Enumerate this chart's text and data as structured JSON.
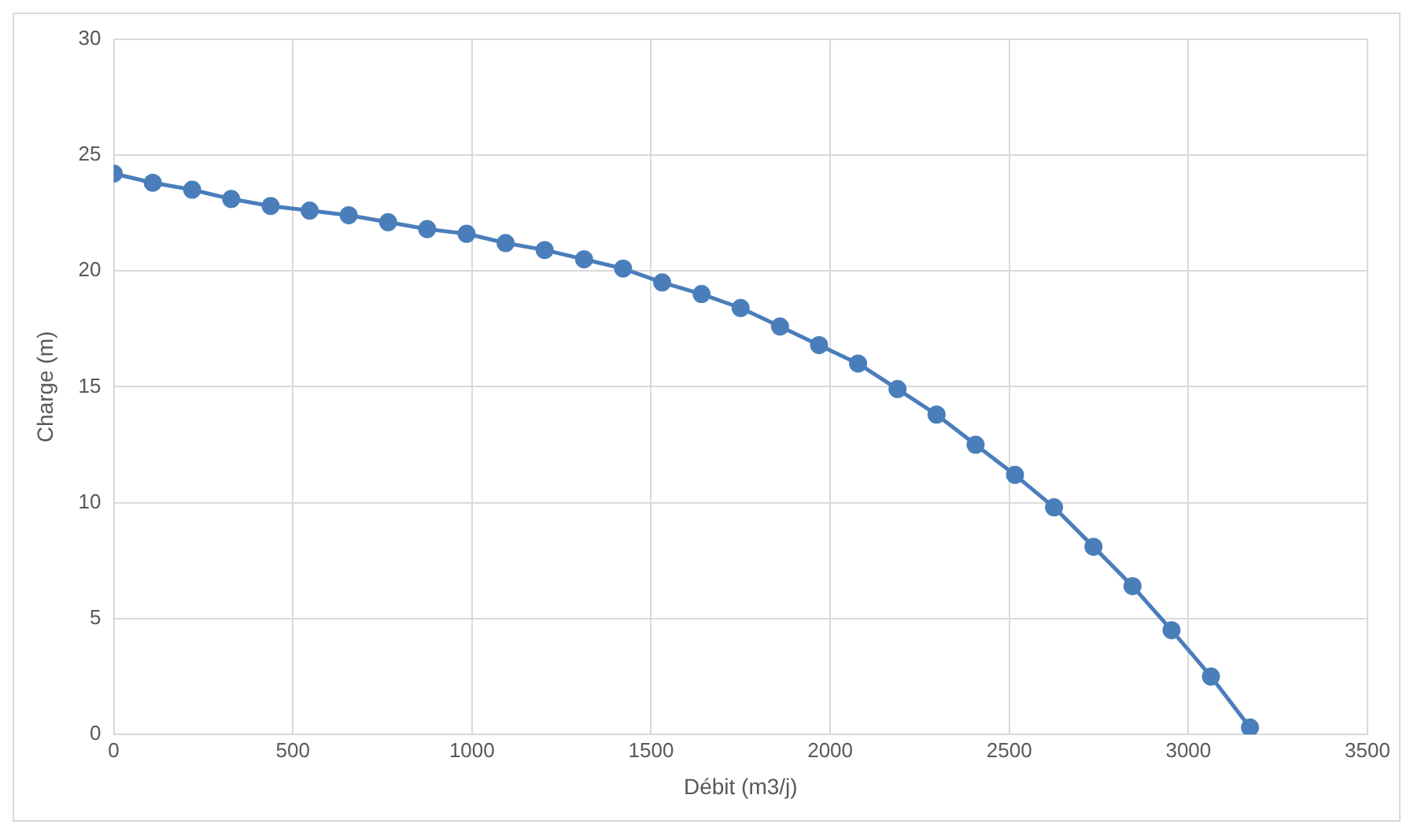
{
  "chart_data": {
    "type": "line",
    "xlabel": "Débit (m3/j)",
    "ylabel": "Charge (m)",
    "x": [
      0,
      109,
      219,
      328,
      438,
      547,
      656,
      766,
      875,
      985,
      1094,
      1203,
      1313,
      1422,
      1531,
      1641,
      1750,
      1860,
      1969,
      2078,
      2188,
      2297,
      2406,
      2516,
      2625,
      2735,
      2844,
      2953,
      3063,
      3172
    ],
    "series": [
      {
        "color": "#4a7ebb",
        "values": [
          24.2,
          23.8,
          23.5,
          23.1,
          22.8,
          22.6,
          22.4,
          22.1,
          21.8,
          21.6,
          21.2,
          20.9,
          20.5,
          20.1,
          19.5,
          19.0,
          18.4,
          17.6,
          16.8,
          16.0,
          14.9,
          13.8,
          12.5,
          11.2,
          9.8,
          8.1,
          6.4,
          4.5,
          2.5,
          0.3
        ]
      }
    ],
    "xlim": [
      0,
      3500
    ],
    "xticks": [
      0,
      500,
      1000,
      1500,
      2000,
      2500,
      3000,
      3500
    ],
    "ylim": [
      0,
      30
    ],
    "yticks": [
      0,
      5,
      10,
      15,
      20,
      25,
      30
    ],
    "grid": true,
    "legend": false,
    "marker": "circle",
    "line_style": "solid"
  }
}
